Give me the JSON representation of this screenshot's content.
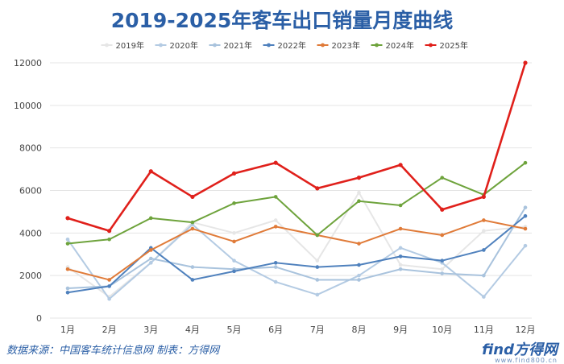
{
  "chart_data": {
    "type": "line",
    "title": "2019-2025年客车出口销量月度曲线",
    "xlabel": "",
    "ylabel": "",
    "categories": [
      "1月",
      "2月",
      "3月",
      "4月",
      "5月",
      "6月",
      "7月",
      "8月",
      "9月",
      "10月",
      "11月",
      "12月"
    ],
    "ylim": [
      0,
      12000
    ],
    "yticks": [
      0,
      2000,
      4000,
      6000,
      8000,
      10000,
      12000
    ],
    "grid": true,
    "legend_position": "top",
    "series": [
      {
        "name": "2019年",
        "color": "#e6e6e6",
        "values": [
          2400,
          1000,
          2600,
          4500,
          4000,
          4600,
          2700,
          5900,
          2500,
          2300,
          4100,
          4300
        ]
      },
      {
        "name": "2020年",
        "color": "#b4cbe3",
        "values": [
          3700,
          900,
          2600,
          4400,
          2700,
          1700,
          1100,
          2000,
          3300,
          2600,
          1000,
          3400
        ]
      },
      {
        "name": "2021年",
        "color": "#a9c3dd",
        "values": [
          1400,
          1500,
          2800,
          2400,
          2300,
          2400,
          1800,
          1800,
          2300,
          2100,
          2000,
          5200
        ]
      },
      {
        "name": "2022年",
        "color": "#4f81bd",
        "values": [
          1200,
          1500,
          3300,
          1800,
          2200,
          2600,
          2400,
          2500,
          2900,
          2700,
          3200,
          4800
        ]
      },
      {
        "name": "2023年",
        "color": "#e07b39",
        "values": [
          2300,
          1800,
          3200,
          4200,
          3600,
          4300,
          3900,
          3500,
          4200,
          3900,
          4600,
          4200
        ]
      },
      {
        "name": "2024年",
        "color": "#6ea33c",
        "values": [
          3500,
          3700,
          4700,
          4500,
          5400,
          5700,
          3900,
          5500,
          5300,
          6600,
          5800,
          7300
        ]
      },
      {
        "name": "2025年",
        "color": "#e0201b",
        "values": [
          4700,
          4100,
          6900,
          5700,
          6800,
          7300,
          6100,
          6600,
          7200,
          5100,
          5700,
          12000
        ]
      }
    ]
  },
  "footer": {
    "source": "数据来源：中国客车统计信息网  制表：方得网",
    "watermark": "find方得网",
    "watermark_sub": "www.find800.cn"
  }
}
